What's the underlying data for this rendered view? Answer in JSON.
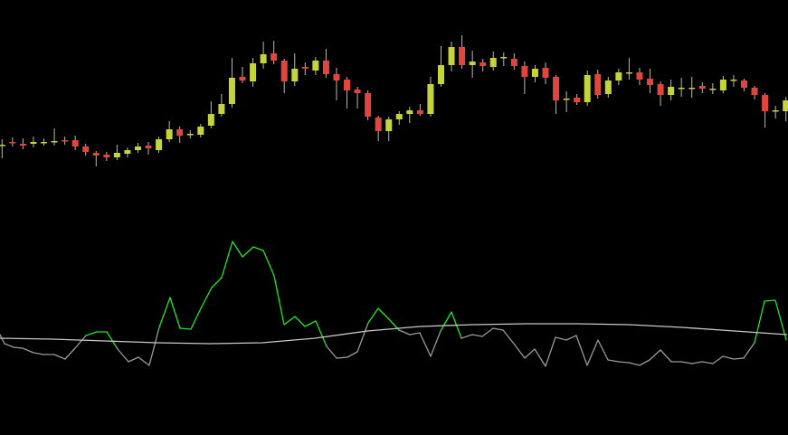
{
  "chart_data": [
    {
      "type": "candlestick",
      "up_color": "#c5d43a",
      "down_color": "#e2453b",
      "wick_color": "#b8b8b8",
      "xlim": [
        -0.2,
        75.2
      ],
      "ylim": [
        260,
        481
      ],
      "open": [
        321,
        324,
        322,
        322,
        324,
        325,
        326,
        326,
        319,
        312,
        310,
        307,
        311,
        315,
        320,
        315,
        327,
        338,
        333,
        332,
        342,
        355,
        366,
        396,
        391,
        411,
        422,
        414,
        391,
        407,
        403,
        414,
        399,
        393,
        382,
        378,
        351,
        336,
        349,
        355,
        359,
        355,
        388,
        409,
        429,
        409,
        412,
        407,
        418,
        416,
        408,
        396,
        406,
        396,
        372,
        373,
        368,
        399,
        377,
        392,
        401,
        401,
        394,
        388,
        376,
        384,
        384,
        386,
        383,
        381,
        393,
        392,
        384,
        376,
        359,
        358
      ],
      "high": [
        327,
        329,
        328,
        330,
        328,
        339,
        330,
        331,
        322,
        314,
        313,
        321,
        318,
        323,
        324,
        330,
        347,
        341,
        337,
        344,
        369,
        377,
        417,
        407,
        417,
        435,
        436,
        416,
        422,
        412,
        418,
        427,
        406,
        396,
        385,
        381,
        353,
        352,
        358,
        363,
        366,
        396,
        430,
        435,
        442,
        425,
        416,
        424,
        423,
        422,
        413,
        409,
        412,
        398,
        380,
        377,
        403,
        404,
        396,
        405,
        417,
        406,
        405,
        391,
        393,
        395,
        396,
        390,
        389,
        397,
        398,
        394,
        386,
        378,
        364,
        374
      ],
      "low": [
        306,
        319,
        316,
        318,
        320,
        320,
        321,
        315,
        309,
        297,
        303,
        304,
        307,
        312,
        310,
        312,
        324,
        323,
        328,
        329,
        339,
        352,
        362,
        389,
        385,
        405,
        410,
        378,
        386,
        398,
        398,
        395,
        370,
        361,
        361,
        348,
        325,
        325,
        343,
        345,
        353,
        352,
        385,
        402,
        405,
        395,
        402,
        403,
        408,
        404,
        377,
        390,
        388,
        355,
        357,
        365,
        364,
        372,
        373,
        387,
        393,
        387,
        378,
        364,
        370,
        374,
        373,
        378,
        377,
        378,
        385,
        380,
        371,
        340,
        350,
        347
      ],
      "close": [
        321,
        323,
        320,
        324,
        324,
        325,
        325,
        319,
        313,
        309,
        307,
        312,
        315,
        319,
        317,
        327,
        338,
        331,
        333,
        341,
        355,
        366,
        395,
        392,
        411,
        421,
        414,
        391,
        405,
        405,
        414,
        399,
        392,
        381,
        378,
        352,
        336,
        349,
        355,
        359,
        355,
        388,
        409,
        429,
        409,
        413,
        408,
        417,
        418,
        408,
        396,
        405,
        395,
        370,
        372,
        368,
        398,
        376,
        392,
        401,
        401,
        393,
        387,
        376,
        385,
        384,
        384,
        383,
        383,
        393,
        393,
        384,
        376,
        358,
        359,
        370
      ]
    },
    {
      "type": "line",
      "xlim": [
        0,
        871
      ],
      "ylim": [
        0,
        260
      ],
      "series": [
        {
          "color": "#9a9a9a",
          "above_color": "#1ee81e",
          "x": [
            0,
            5,
            15,
            25,
            37,
            48,
            60,
            72,
            83,
            95,
            107,
            118,
            130,
            142,
            153,
            165,
            176,
            188,
            199,
            211,
            222,
            234,
            245,
            257,
            268,
            280,
            291,
            303,
            314,
            326,
            337,
            349,
            361,
            372,
            384,
            395,
            407,
            418,
            430,
            441,
            453,
            464,
            476,
            487,
            499,
            510,
            522,
            533,
            545,
            556,
            568,
            580,
            591,
            603,
            614,
            626,
            637,
            649,
            661,
            672,
            684,
            695,
            707,
            718,
            730,
            742,
            753,
            765,
            776,
            788,
            799,
            811,
            822,
            834,
            845,
            857,
            869
          ],
          "values": [
            111,
            101,
            97,
            96,
            91,
            89,
            89,
            84,
            96,
            110,
            114,
            114,
            95,
            81,
            86,
            77,
            119,
            152,
            118,
            117,
            140,
            163,
            174,
            214,
            197,
            208,
            204,
            176,
            122,
            131,
            120,
            126,
            98,
            85,
            86,
            92,
            124,
            140,
            128,
            116,
            111,
            113,
            87,
            115,
            136,
            107,
            111,
            109,
            118,
            116,
            101,
            85,
            95,
            76,
            108,
            105,
            110,
            77,
            105,
            83,
            81,
            80,
            77,
            83,
            94,
            81,
            81,
            79,
            81,
            79,
            87,
            84,
            85,
            102,
            148,
            149,
            105
          ]
        },
        {
          "color": "#c8c8c8",
          "x": [
            0,
            58,
            116,
            174,
            232,
            290,
            348,
            406,
            464,
            522,
            580,
            638,
            696,
            754,
            812,
            870
          ],
          "values": [
            107,
            106,
            104,
            102,
            101,
            102,
            107,
            115,
            120,
            122,
            123,
            123,
            122,
            119,
            115,
            111
          ]
        }
      ]
    }
  ]
}
